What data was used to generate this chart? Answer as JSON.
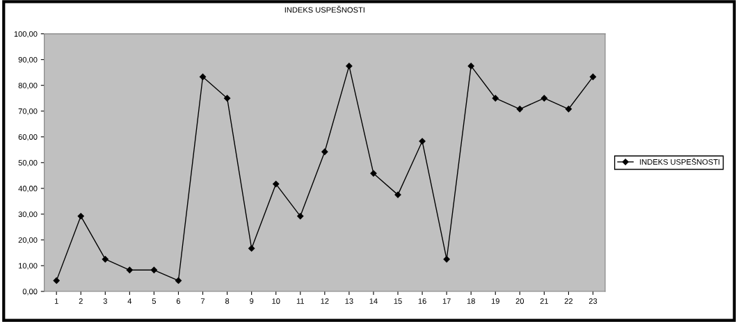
{
  "chart_data": {
    "type": "line",
    "title": "INDEKS USPEŠNOSTI",
    "categories": [
      "1",
      "2",
      "3",
      "4",
      "5",
      "6",
      "7",
      "8",
      "9",
      "10",
      "11",
      "12",
      "13",
      "14",
      "15",
      "16",
      "17",
      "18",
      "19",
      "20",
      "21",
      "22",
      "23"
    ],
    "series": [
      {
        "name": "INDEKS USPEŠNOSTI",
        "color": "#000000",
        "values": [
          4.2,
          29.2,
          12.5,
          8.3,
          8.3,
          4.2,
          83.3,
          75.0,
          16.7,
          41.7,
          29.2,
          54.2,
          87.5,
          45.8,
          37.5,
          58.3,
          12.5,
          87.5,
          75.0,
          70.8,
          75.0,
          70.8,
          83.3
        ]
      }
    ],
    "ylim": [
      0,
      100
    ],
    "yticks": [
      {
        "value": 0,
        "label": "0,00"
      },
      {
        "value": 10,
        "label": "10,00"
      },
      {
        "value": 20,
        "label": "20,00"
      },
      {
        "value": 30,
        "label": "30,00"
      },
      {
        "value": 40,
        "label": "40,00"
      },
      {
        "value": 50,
        "label": "50,00"
      },
      {
        "value": 60,
        "label": "60,00"
      },
      {
        "value": 70,
        "label": "70,00"
      },
      {
        "value": 80,
        "label": "80,00"
      },
      {
        "value": 90,
        "label": "90,00"
      },
      {
        "value": 100,
        "label": "100,00"
      }
    ],
    "grid": false,
    "legend": "right",
    "marker": "diamond",
    "line_style": "solid"
  }
}
